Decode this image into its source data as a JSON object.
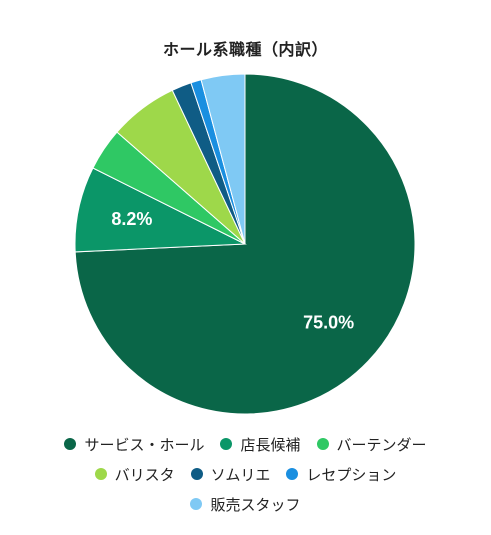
{
  "chart_data": {
    "type": "pie",
    "title": "ホール系職種（内訳）",
    "start_angle_deg": 0,
    "direction": "clockwise",
    "categories": [
      "サービス・ホール",
      "店長候補",
      "バーテンダー",
      "バリスタ",
      "ソムリエ",
      "レセプション",
      "販売スタッフ"
    ],
    "values": [
      75.0,
      8.2,
      4.1,
      6.6,
      1.9,
      1.0,
      4.2
    ],
    "colors": [
      "#0a6648",
      "#0b9668",
      "#2fc864",
      "#9ed84a",
      "#0f5c85",
      "#1a8fe0",
      "#7fc9f4"
    ],
    "data_labels": [
      {
        "index": 0,
        "text": "75.0%",
        "color": "#ffffff"
      },
      {
        "index": 1,
        "text": "8.2%",
        "color": "#ffffff"
      }
    ],
    "legend_position": "bottom"
  }
}
